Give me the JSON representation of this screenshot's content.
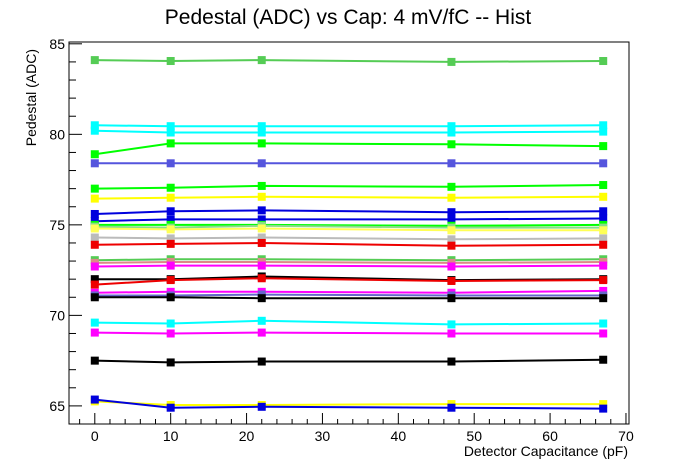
{
  "chart_data": {
    "type": "line",
    "title": "Pedestal (ADC) vs Cap: 4 mV/fC -- Hist",
    "xlabel": "Detector Capacitance (pF)",
    "ylabel": "Pedestal (ADC)",
    "xlim": [
      -3.4,
      70.4
    ],
    "ylim": [
      64.0,
      85.1
    ],
    "x_ticks": [
      "0",
      "10",
      "20",
      "30",
      "40",
      "50",
      "60",
      "70"
    ],
    "y_ticks": [
      "65",
      "70",
      "75",
      "80",
      "85"
    ],
    "grid": false,
    "marker": "square",
    "x": [
      0,
      10,
      22,
      47,
      67
    ],
    "series": [
      {
        "color": "#55cc55",
        "values": [
          84.1,
          84.05,
          84.1,
          84.0,
          84.05
        ]
      },
      {
        "color": "#00ffff",
        "values": [
          80.5,
          80.45,
          80.45,
          80.45,
          80.5
        ]
      },
      {
        "color": "#00ffff",
        "values": [
          80.2,
          80.1,
          80.1,
          80.1,
          80.15
        ]
      },
      {
        "color": "#00ff00",
        "values": [
          78.9,
          79.5,
          79.5,
          79.45,
          79.35
        ]
      },
      {
        "color": "#5555dd",
        "values": [
          78.4,
          78.4,
          78.4,
          78.4,
          78.4
        ]
      },
      {
        "color": "#00ff00",
        "values": [
          77.0,
          77.05,
          77.15,
          77.1,
          77.2
        ]
      },
      {
        "color": "#ffff00",
        "values": [
          76.45,
          76.5,
          76.55,
          76.5,
          76.55
        ]
      },
      {
        "color": "#0000dd",
        "values": [
          75.6,
          75.75,
          75.8,
          75.7,
          75.75
        ]
      },
      {
        "color": "#0000dd",
        "values": [
          75.2,
          75.3,
          75.3,
          75.3,
          75.35
        ]
      },
      {
        "color": "#00ff00",
        "values": [
          75.0,
          75.0,
          75.0,
          74.95,
          75.0
        ]
      },
      {
        "color": "#88dd88",
        "values": [
          74.9,
          74.85,
          74.95,
          74.85,
          74.85
        ]
      },
      {
        "color": "#ffff55",
        "values": [
          74.8,
          74.75,
          74.8,
          74.7,
          74.7
        ]
      },
      {
        "color": "#bbbbbb",
        "values": [
          74.3,
          74.25,
          74.3,
          74.2,
          74.25
        ]
      },
      {
        "color": "#ee0000",
        "values": [
          73.9,
          73.95,
          74.0,
          73.85,
          73.9
        ]
      },
      {
        "color": "#55cc55",
        "values": [
          73.05,
          73.1,
          73.1,
          73.05,
          73.1
        ]
      },
      {
        "color": "#dd8888",
        "values": [
          72.9,
          72.95,
          72.95,
          72.9,
          72.95
        ]
      },
      {
        "color": "#ff00ff",
        "values": [
          72.7,
          72.75,
          72.75,
          72.7,
          72.75
        ]
      },
      {
        "color": "#000000",
        "values": [
          72.0,
          72.0,
          72.15,
          71.95,
          72.0
        ]
      },
      {
        "color": "#ee0000",
        "values": [
          71.7,
          71.95,
          72.05,
          71.9,
          71.95
        ]
      },
      {
        "color": "#ff00ff",
        "values": [
          71.25,
          71.3,
          71.3,
          71.25,
          71.35
        ]
      },
      {
        "color": "#6666cc",
        "values": [
          71.1,
          71.1,
          71.15,
          71.1,
          71.1
        ]
      },
      {
        "color": "#000000",
        "values": [
          71.0,
          71.0,
          70.95,
          70.95,
          70.95
        ]
      },
      {
        "color": "#00ffff",
        "values": [
          69.6,
          69.55,
          69.7,
          69.5,
          69.55
        ]
      },
      {
        "color": "#ff00ff",
        "values": [
          69.05,
          69.0,
          69.05,
          69.0,
          69.0
        ]
      },
      {
        "color": "#000000",
        "values": [
          67.5,
          67.4,
          67.45,
          67.45,
          67.55
        ]
      },
      {
        "color": "#ffff00",
        "values": [
          65.25,
          65.05,
          65.05,
          65.1,
          65.1
        ]
      },
      {
        "color": "#0000dd",
        "values": [
          65.35,
          64.9,
          64.95,
          64.9,
          64.85
        ]
      }
    ]
  }
}
